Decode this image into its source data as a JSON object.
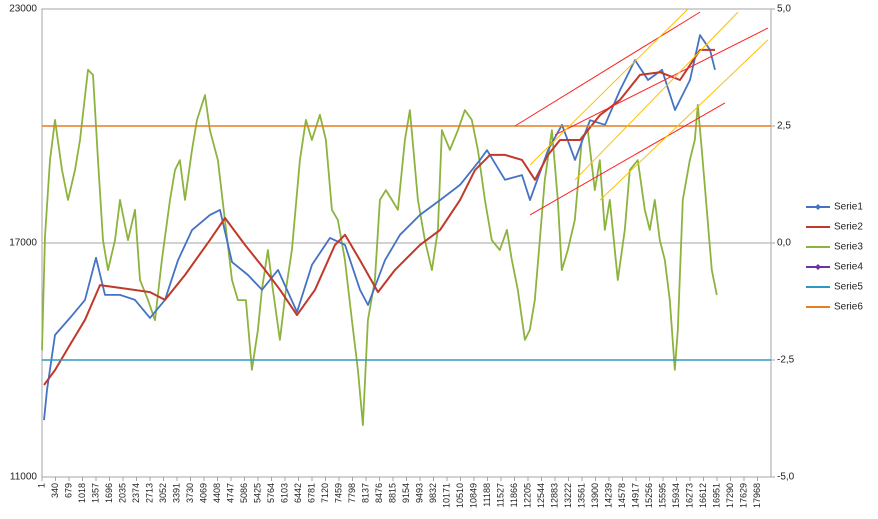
{
  "chart_data": {
    "type": "line",
    "xlim": [
      1,
      18307
    ],
    "xticks": [
      1,
      340,
      679,
      1018,
      1357,
      1696,
      2035,
      2374,
      2713,
      3052,
      3391,
      3730,
      4069,
      4408,
      4747,
      5086,
      5425,
      5764,
      6103,
      6442,
      6781,
      7120,
      7459,
      7798,
      8137,
      8476,
      8815,
      9154,
      9493,
      9832,
      10171,
      10510,
      10849,
      11188,
      11527,
      11866,
      12205,
      12544,
      12883,
      13222,
      13561,
      13900,
      14239,
      14578,
      14917,
      15256,
      15595,
      15934,
      16273,
      16612,
      16951,
      17290,
      17629,
      17968
    ],
    "ylim": [
      11000,
      23000
    ],
    "yticks": [
      11000,
      17000,
      23000
    ],
    "y2lim": [
      -5,
      5
    ],
    "y2ticks": [
      {
        "value": -5,
        "label": "-5,0"
      },
      {
        "value": -2.5,
        "label": "-2,5"
      },
      {
        "value": 0,
        "label": "0,0"
      },
      {
        "value": 2.5,
        "label": "2,5"
      },
      {
        "value": 5,
        "label": "5,0"
      }
    ],
    "grid": true,
    "legend": "right",
    "series": [
      {
        "name": "Serie1",
        "color": "#4472c4",
        "marker": "diamond",
        "x": [
          51,
          127,
          327,
          704,
          1081,
          1357,
          1583,
          1960,
          2336,
          2713,
          3090,
          3416,
          3768,
          4220,
          4471,
          4772,
          5174,
          5525,
          5927,
          6404,
          6781,
          7233,
          7610,
          7987,
          8187,
          8614,
          8991,
          9493,
          9995,
          10497,
          10999,
          11175,
          11627,
          12054,
          12255,
          12707,
          13058,
          13385,
          13762,
          14139,
          14516,
          14892,
          15219,
          15570,
          15897,
          16274,
          16525,
          16776,
          16901
        ],
        "values": [
          12460,
          13230,
          14640,
          15080,
          15540,
          16620,
          15670,
          15670,
          15540,
          15080,
          15540,
          16560,
          17330,
          17720,
          17850,
          16510,
          16180,
          15800,
          16310,
          15230,
          16440,
          17130,
          16950,
          15800,
          15410,
          16560,
          17210,
          17720,
          18100,
          18490,
          19130,
          19380,
          18620,
          18740,
          18100,
          19380,
          20030,
          19130,
          20150,
          20030,
          20920,
          21690,
          21180,
          21440,
          20410,
          21180,
          22330,
          21950,
          21440
        ]
      },
      {
        "name": "Serie2",
        "color": "#c0392b",
        "x": [
          51,
          327,
          704,
          1081,
          1458,
          1960,
          2713,
          3090,
          3592,
          4220,
          4597,
          5099,
          5601,
          5978,
          6404,
          6856,
          7359,
          7610,
          7987,
          8438,
          8865,
          9493,
          9995,
          10497,
          10874,
          11250,
          11627,
          12054,
          12380,
          12707,
          13008,
          13510,
          14013,
          14516,
          15018,
          15520,
          16022,
          16525,
          16901
        ],
        "values": [
          13360,
          13740,
          14390,
          15030,
          15920,
          15850,
          15740,
          15540,
          16180,
          17080,
          17640,
          16950,
          16310,
          15800,
          15150,
          15800,
          16950,
          17210,
          16560,
          15740,
          16310,
          16950,
          17330,
          18100,
          18870,
          19260,
          19260,
          19130,
          18620,
          19260,
          19640,
          19640,
          20280,
          20670,
          21310,
          21380,
          21180,
          21950,
          21950
        ]
      },
      {
        "name": "Serie3",
        "color": "#8db33f",
        "axis": "y2",
        "x": [
          1,
          76,
          202,
          327,
          503,
          654,
          830,
          955,
          1156,
          1281,
          1407,
          1532,
          1658,
          1834,
          1959,
          2160,
          2336,
          2461,
          2662,
          2838,
          3013,
          3214,
          3340,
          3465,
          3591,
          3767,
          3892,
          4093,
          4218,
          4419,
          4595,
          4771,
          4921,
          5122,
          5273,
          5423,
          5524,
          5674,
          5800,
          5976,
          6126,
          6277,
          6478,
          6628,
          6779,
          6980,
          7130,
          7281,
          7431,
          7607,
          7783,
          7934,
          8059,
          8185,
          8361,
          8486,
          8637,
          8787,
          8938,
          9114,
          9239,
          9440,
          9616,
          9792,
          9942,
          10042,
          10243,
          10444,
          10620,
          10795,
          10946,
          11122,
          11297,
          11498,
          11674,
          11799,
          11950,
          12126,
          12251,
          12377,
          12502,
          12628,
          12804,
          12954,
          13055,
          13205,
          13381,
          13557,
          13707,
          13883,
          14009,
          14134,
          14260,
          14461,
          14636,
          14762,
          14963,
          15139,
          15264,
          15390,
          15515,
          15641,
          15766,
          15892,
          15967,
          16093,
          16269,
          16394,
          16470,
          16570,
          16695,
          16821,
          16946
        ],
        "values": [
          -2.29,
          0.15,
          1.77,
          2.63,
          1.56,
          0.92,
          1.56,
          2.2,
          3.7,
          3.59,
          1.77,
          0.06,
          -0.58,
          0.06,
          0.92,
          0.06,
          0.71,
          -0.79,
          -1.22,
          -1.65,
          -0.36,
          0.92,
          1.56,
          1.77,
          0.92,
          1.99,
          2.63,
          3.16,
          2.41,
          1.77,
          0.49,
          -0.79,
          -1.22,
          -1.22,
          -2.71,
          -1.86,
          -1.0,
          -0.15,
          -1.0,
          -2.07,
          -1.0,
          -0.15,
          1.77,
          2.63,
          2.2,
          2.74,
          2.2,
          0.71,
          0.49,
          -0.36,
          -1.65,
          -2.71,
          -3.89,
          -1.65,
          -0.79,
          0.92,
          1.13,
          0.92,
          0.71,
          2.2,
          2.84,
          0.92,
          0.06,
          -0.58,
          0.28,
          2.41,
          1.99,
          2.41,
          2.84,
          2.63,
          1.99,
          0.92,
          0.06,
          -0.15,
          0.28,
          -0.36,
          -1.0,
          -2.07,
          -1.86,
          -1.22,
          0.06,
          1.35,
          2.41,
          0.92,
          -0.58,
          -0.15,
          0.49,
          2.2,
          2.41,
          1.13,
          1.77,
          0.28,
          0.92,
          -0.79,
          0.28,
          1.56,
          1.77,
          0.71,
          0.28,
          0.92,
          0.06,
          -0.36,
          -1.22,
          -2.71,
          -1.86,
          0.92,
          1.77,
          2.2,
          2.95,
          1.99,
          0.71,
          -0.58,
          -1.11
        ]
      },
      {
        "name": "Serie4",
        "color": "#7030a0",
        "marker": "diamond",
        "x": [],
        "values": []
      },
      {
        "name": "Serie5",
        "color": "#2e9ac4",
        "axis": "y2",
        "x": [
          1,
          18307
        ],
        "values": [
          -2.5,
          -2.5
        ]
      },
      {
        "name": "Serie6",
        "color": "#e67e22",
        "axis": "y2",
        "x": [
          1,
          18307
        ],
        "values": [
          2.5,
          2.5
        ]
      }
    ],
    "channels": [
      {
        "color": "#ff2020",
        "x": [
          11878,
          16523
        ],
        "values": [
          20000,
          22920
        ]
      },
      {
        "color": "#ff2020",
        "x": [
          12882,
          18230
        ],
        "values": [
          19770,
          22510
        ]
      },
      {
        "color": "#ff2020",
        "x": [
          12255,
          17150
        ],
        "values": [
          17720,
          20590
        ]
      },
      {
        "color": "#ffc000",
        "x": [
          12255,
          16222
        ],
        "values": [
          19000,
          23000
        ]
      },
      {
        "color": "#ffc000",
        "x": [
          13385,
          17477
        ],
        "values": [
          18620,
          22920
        ]
      },
      {
        "color": "#ffc000",
        "x": [
          14013,
          18230
        ],
        "values": [
          18100,
          22210
        ]
      }
    ]
  }
}
